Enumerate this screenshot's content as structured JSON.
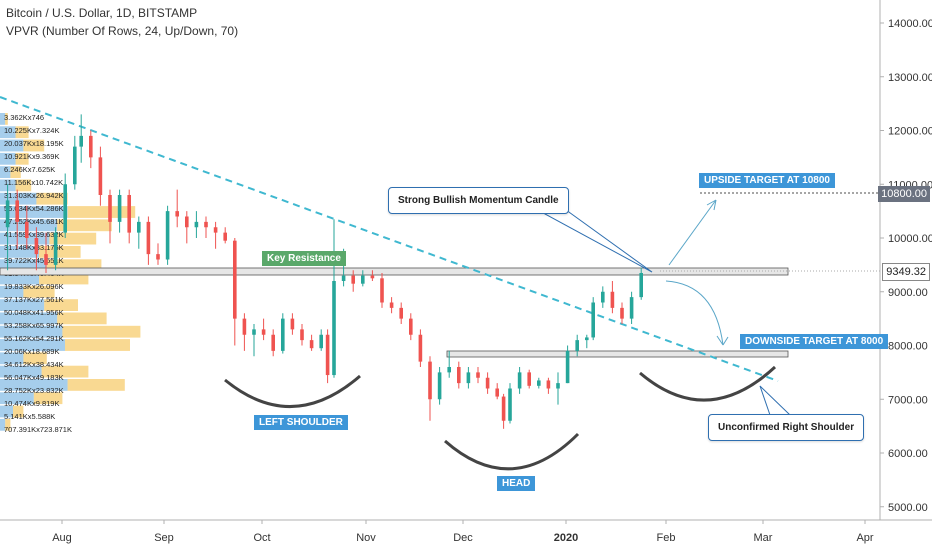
{
  "header": {
    "title": "Bitcoin / U.S. Dollar, 1D, BITSTAMP",
    "indicator": "VPVR (Number Of Rows, 24, Up/Down, 70)"
  },
  "chart_data": {
    "type": "candlestick",
    "y_ticks": [
      "14000.00",
      "13000.00",
      "12000.00",
      "11000.00",
      "10000.00",
      "9000.00",
      "8000.00",
      "7000.00",
      "6000.00",
      "5000.00"
    ],
    "x_ticks": [
      "Aug",
      "Sep",
      "Oct",
      "Nov",
      "Dec",
      "2020",
      "Feb",
      "Mar",
      "Apr"
    ],
    "ylim": [
      4800,
      14300
    ],
    "price_tags": {
      "target": "10800.00",
      "current": "9349.32"
    },
    "grid": false,
    "volume_profile_labels": [
      "3.362Kx746",
      "10.225Kx7.324K",
      "20.037Kx18.195K",
      "10.921Kx9.369K",
      "6.246Kx7.625K",
      "11.156Kx10.742K",
      "31.303Kx26.942K",
      "56.034Kx54.286K",
      "47.252Kx45.681K",
      "41.559Kx39.632K",
      "31.148Kx33.176K",
      "39.722Kx45.651K",
      "31.347Kx40.464K",
      "19.833Kx26.096K",
      "37.137Kx27.561K",
      "50.048Kx41.956K",
      "53.258Kx65.997K",
      "55.162Kx54.291K",
      "20.06Kx18.689K",
      "34.612Kx38.434K",
      "56.047Kx49.183K",
      "28.752Kx23.832K",
      "10.474Kx9.819K",
      "5.141Kx5.588K",
      "707.391Kx723.871K"
    ],
    "volume_profile": [
      {
        "up": 2,
        "down": 1
      },
      {
        "up": 6,
        "down": 5
      },
      {
        "up": 9,
        "down": 8
      },
      {
        "up": 6,
        "down": 5
      },
      {
        "up": 4,
        "down": 4
      },
      {
        "up": 6,
        "down": 6
      },
      {
        "up": 14,
        "down": 12
      },
      {
        "up": 26,
        "down": 26
      },
      {
        "up": 22,
        "down": 21
      },
      {
        "up": 19,
        "down": 18
      },
      {
        "up": 15,
        "down": 16
      },
      {
        "up": 18,
        "down": 21
      },
      {
        "up": 15,
        "down": 19
      },
      {
        "up": 9,
        "down": 12
      },
      {
        "up": 17,
        "down": 13
      },
      {
        "up": 22,
        "down": 19
      },
      {
        "up": 24,
        "down": 30
      },
      {
        "up": 25,
        "down": 25
      },
      {
        "up": 9,
        "down": 9
      },
      {
        "up": 16,
        "down": 18
      },
      {
        "up": 26,
        "down": 22
      },
      {
        "up": 13,
        "down": 11
      },
      {
        "up": 5,
        "down": 4
      },
      {
        "up": 2,
        "down": 2
      }
    ],
    "candles": [
      {
        "date": "2019-07-15",
        "o": 10200,
        "h": 11000,
        "l": 9400,
        "c": 10700
      },
      {
        "date": "2019-07-18",
        "o": 10700,
        "h": 10900,
        "l": 9800,
        "c": 10300
      },
      {
        "date": "2019-07-21",
        "o": 10300,
        "h": 10600,
        "l": 9800,
        "c": 10000
      },
      {
        "date": "2019-07-24",
        "o": 10000,
        "h": 10200,
        "l": 9400,
        "c": 9700
      },
      {
        "date": "2019-07-27",
        "o": 9700,
        "h": 10100,
        "l": 9350,
        "c": 9500
      },
      {
        "date": "2019-07-30",
        "o": 9500,
        "h": 10200,
        "l": 9400,
        "c": 10100
      },
      {
        "date": "2019-08-02",
        "o": 10100,
        "h": 11200,
        "l": 10000,
        "c": 11000
      },
      {
        "date": "2019-08-05",
        "o": 11000,
        "h": 11900,
        "l": 10900,
        "c": 11700
      },
      {
        "date": "2019-08-07",
        "o": 11700,
        "h": 12300,
        "l": 11400,
        "c": 11900
      },
      {
        "date": "2019-08-10",
        "o": 11900,
        "h": 12000,
        "l": 11300,
        "c": 11500
      },
      {
        "date": "2019-08-13",
        "o": 11500,
        "h": 11700,
        "l": 10600,
        "c": 10800
      },
      {
        "date": "2019-08-16",
        "o": 10800,
        "h": 10900,
        "l": 9900,
        "c": 10300
      },
      {
        "date": "2019-08-19",
        "o": 10300,
        "h": 10900,
        "l": 10100,
        "c": 10800
      },
      {
        "date": "2019-08-22",
        "o": 10800,
        "h": 10900,
        "l": 9900,
        "c": 10100
      },
      {
        "date": "2019-08-25",
        "o": 10100,
        "h": 10400,
        "l": 9800,
        "c": 10300
      },
      {
        "date": "2019-08-28",
        "o": 10300,
        "h": 10400,
        "l": 9500,
        "c": 9700
      },
      {
        "date": "2019-08-31",
        "o": 9700,
        "h": 9900,
        "l": 9500,
        "c": 9600
      },
      {
        "date": "2019-09-03",
        "o": 9600,
        "h": 10600,
        "l": 9500,
        "c": 10500
      },
      {
        "date": "2019-09-06",
        "o": 10500,
        "h": 10900,
        "l": 10200,
        "c": 10400
      },
      {
        "date": "2019-09-09",
        "o": 10400,
        "h": 10500,
        "l": 9900,
        "c": 10200
      },
      {
        "date": "2019-09-12",
        "o": 10200,
        "h": 10500,
        "l": 10000,
        "c": 10300
      },
      {
        "date": "2019-09-15",
        "o": 10300,
        "h": 10400,
        "l": 10000,
        "c": 10200
      },
      {
        "date": "2019-09-18",
        "o": 10200,
        "h": 10300,
        "l": 9800,
        "c": 10100
      },
      {
        "date": "2019-09-21",
        "o": 10100,
        "h": 10200,
        "l": 9900,
        "c": 9950
      },
      {
        "date": "2019-09-24",
        "o": 9950,
        "h": 10000,
        "l": 8000,
        "c": 8500
      },
      {
        "date": "2019-09-27",
        "o": 8500,
        "h": 8600,
        "l": 7900,
        "c": 8200
      },
      {
        "date": "2019-09-30",
        "o": 8200,
        "h": 8400,
        "l": 7800,
        "c": 8300
      },
      {
        "date": "2019-10-03",
        "o": 8300,
        "h": 8500,
        "l": 8100,
        "c": 8200
      },
      {
        "date": "2019-10-06",
        "o": 8200,
        "h": 8300,
        "l": 7800,
        "c": 7900
      },
      {
        "date": "2019-10-09",
        "o": 7900,
        "h": 8600,
        "l": 7850,
        "c": 8500
      },
      {
        "date": "2019-10-12",
        "o": 8500,
        "h": 8600,
        "l": 8200,
        "c": 8300
      },
      {
        "date": "2019-10-15",
        "o": 8300,
        "h": 8400,
        "l": 8000,
        "c": 8100
      },
      {
        "date": "2019-10-18",
        "o": 8100,
        "h": 8200,
        "l": 7900,
        "c": 7950
      },
      {
        "date": "2019-10-21",
        "o": 7950,
        "h": 8300,
        "l": 7900,
        "c": 8200
      },
      {
        "date": "2019-10-23",
        "o": 8200,
        "h": 8300,
        "l": 7300,
        "c": 7450
      },
      {
        "date": "2019-10-25",
        "o": 7450,
        "h": 10350,
        "l": 7400,
        "c": 9200
      },
      {
        "date": "2019-10-28",
        "o": 9200,
        "h": 9800,
        "l": 9100,
        "c": 9300
      },
      {
        "date": "2019-10-31",
        "o": 9300,
        "h": 9400,
        "l": 9000,
        "c": 9150
      },
      {
        "date": "2019-11-03",
        "o": 9150,
        "h": 9400,
        "l": 9100,
        "c": 9300
      },
      {
        "date": "2019-11-06",
        "o": 9300,
        "h": 9400,
        "l": 9200,
        "c": 9250
      },
      {
        "date": "2019-11-09",
        "o": 9250,
        "h": 9350,
        "l": 8700,
        "c": 8800
      },
      {
        "date": "2019-11-12",
        "o": 8800,
        "h": 8900,
        "l": 8600,
        "c": 8700
      },
      {
        "date": "2019-11-15",
        "o": 8700,
        "h": 8800,
        "l": 8400,
        "c": 8500
      },
      {
        "date": "2019-11-18",
        "o": 8500,
        "h": 8600,
        "l": 8100,
        "c": 8200
      },
      {
        "date": "2019-11-21",
        "o": 8200,
        "h": 8300,
        "l": 7600,
        "c": 7700
      },
      {
        "date": "2019-11-24",
        "o": 7700,
        "h": 7800,
        "l": 6600,
        "c": 7000
      },
      {
        "date": "2019-11-27",
        "o": 7000,
        "h": 7600,
        "l": 6900,
        "c": 7500
      },
      {
        "date": "2019-11-30",
        "o": 7500,
        "h": 7900,
        "l": 7400,
        "c": 7600
      },
      {
        "date": "2019-12-03",
        "o": 7600,
        "h": 7700,
        "l": 7200,
        "c": 7300
      },
      {
        "date": "2019-12-06",
        "o": 7300,
        "h": 7600,
        "l": 7200,
        "c": 7500
      },
      {
        "date": "2019-12-09",
        "o": 7500,
        "h": 7600,
        "l": 7300,
        "c": 7400
      },
      {
        "date": "2019-12-12",
        "o": 7400,
        "h": 7500,
        "l": 7100,
        "c": 7200
      },
      {
        "date": "2019-12-15",
        "o": 7200,
        "h": 7300,
        "l": 7000,
        "c": 7050
      },
      {
        "date": "2019-12-17",
        "o": 7050,
        "h": 7100,
        "l": 6450,
        "c": 6600
      },
      {
        "date": "2019-12-19",
        "o": 6600,
        "h": 7300,
        "l": 6550,
        "c": 7200
      },
      {
        "date": "2019-12-22",
        "o": 7200,
        "h": 7600,
        "l": 7100,
        "c": 7500
      },
      {
        "date": "2019-12-25",
        "o": 7500,
        "h": 7550,
        "l": 7200,
        "c": 7250
      },
      {
        "date": "2019-12-28",
        "o": 7250,
        "h": 7400,
        "l": 7200,
        "c": 7350
      },
      {
        "date": "2019-12-31",
        "o": 7350,
        "h": 7400,
        "l": 7100,
        "c": 7200
      },
      {
        "date": "2020-01-03",
        "o": 7200,
        "h": 7500,
        "l": 6900,
        "c": 7300
      },
      {
        "date": "2020-01-06",
        "o": 7300,
        "h": 8000,
        "l": 7300,
        "c": 7900
      },
      {
        "date": "2020-01-09",
        "o": 7900,
        "h": 8200,
        "l": 7800,
        "c": 8100
      },
      {
        "date": "2020-01-12",
        "o": 8100,
        "h": 8200,
        "l": 7950,
        "c": 8150
      },
      {
        "date": "2020-01-14",
        "o": 8150,
        "h": 8900,
        "l": 8100,
        "c": 8800
      },
      {
        "date": "2020-01-17",
        "o": 8800,
        "h": 9100,
        "l": 8700,
        "c": 9000
      },
      {
        "date": "2020-01-20",
        "o": 9000,
        "h": 9200,
        "l": 8600,
        "c": 8700
      },
      {
        "date": "2020-01-23",
        "o": 8700,
        "h": 8800,
        "l": 8400,
        "c": 8500
      },
      {
        "date": "2020-01-26",
        "o": 8500,
        "h": 9000,
        "l": 8400,
        "c": 8900
      },
      {
        "date": "2020-01-29",
        "o": 8900,
        "h": 9450,
        "l": 8850,
        "c": 9349
      }
    ]
  },
  "annotations": {
    "key_resistance": "Key Resistance",
    "upside_target": "UPSIDE TARGET AT 10800",
    "downside_target": "DOWNSIDE TARGET AT 8000",
    "left_shoulder": "LEFT SHOULDER",
    "head": "HEAD",
    "bullish_candle": "Strong Bullish Momentum Candle",
    "right_shoulder": "Unconfirmed Right Shoulder"
  }
}
